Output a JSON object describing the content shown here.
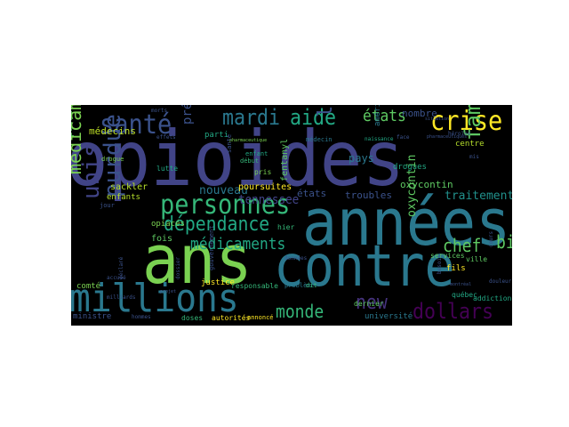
{
  "wordcloud": {
    "background": "#000000",
    "words": [
      {
        "id": "opioides",
        "text": "opioides",
        "color": "#414487"
      },
      {
        "id": "annees",
        "text": "années",
        "color": "#2a788e"
      },
      {
        "id": "ans",
        "text": "ans",
        "color": "#7ad151"
      },
      {
        "id": "contre",
        "text": "contre",
        "color": "#2a788e"
      },
      {
        "id": "millions",
        "text": "millions",
        "color": "#2a788e"
      },
      {
        "id": "personnes",
        "text": "personnes",
        "color": "#35b779"
      },
      {
        "id": "sante",
        "text": "santé",
        "color": "#3b528b"
      },
      {
        "id": "mardi",
        "text": "mardi",
        "color": "#2a788e"
      },
      {
        "id": "aide",
        "text": "aide",
        "color": "#22a884"
      },
      {
        "id": "etats",
        "text": "états",
        "color": "#5ec962"
      },
      {
        "id": "crise",
        "text": "crise",
        "color": "#fde725"
      },
      {
        "id": "dependance",
        "text": "dépendance",
        "color": "#22a884"
      },
      {
        "id": "medicaments",
        "text": "médicaments",
        "color": "#22a884"
      },
      {
        "id": "monde",
        "text": "monde",
        "color": "#35b779"
      },
      {
        "id": "new",
        "text": "new",
        "color": "#46337e"
      },
      {
        "id": "dollars",
        "text": "dollars",
        "color": "#440154"
      },
      {
        "id": "chef",
        "text": "chef",
        "color": "#5ec962"
      },
      {
        "id": "bien",
        "text": "bien",
        "color": "#5ec962"
      },
      {
        "id": "unis",
        "text": "unis",
        "color": "#414487"
      },
      {
        "id": "purdue",
        "text": "purdue",
        "color": "#3b528b"
      },
      {
        "id": "medicament",
        "text": "médicament",
        "color": "#7ad151"
      },
      {
        "id": "famille",
        "text": "famille",
        "color": "#5ec962"
      },
      {
        "id": "lundi",
        "text": "lundi",
        "color": "#3b528b"
      },
      {
        "id": "tennessee",
        "text": "tennessee",
        "color": "#414487"
      },
      {
        "id": "pays",
        "text": "pays",
        "color": "#2a788e"
      },
      {
        "id": "nombre",
        "text": "nombre",
        "color": "#3b528b"
      },
      {
        "id": "medecins",
        "text": "médecins",
        "color": "#bddf26"
      },
      {
        "id": "president",
        "text": "président",
        "color": "#3b528b"
      },
      {
        "id": "oxycontin",
        "text": "oxycontin",
        "color": "#5ec962"
      },
      {
        "id": "fentanyl",
        "text": "fentanyl",
        "color": "#5ec962"
      },
      {
        "id": "troubles",
        "text": "troubles",
        "color": "#3b528b"
      },
      {
        "id": "traitement",
        "text": "traitement",
        "color": "#21918c"
      },
      {
        "id": "nouveau",
        "text": "nouveau",
        "color": "#2a788e"
      },
      {
        "id": "sackler",
        "text": "sackler",
        "color": "#b5de2b"
      },
      {
        "id": "enfants",
        "text": "enfants",
        "color": "#b5de2b"
      },
      {
        "id": "opiaces",
        "text": "opiacés",
        "color": "#7ad151"
      },
      {
        "id": "fois",
        "text": "fois",
        "color": "#5ec962"
      },
      {
        "id": "poursuites",
        "text": "poursuites",
        "color": "#fde725"
      },
      {
        "id": "universite",
        "text": "université",
        "color": "#2a788e"
      },
      {
        "id": "ministre",
        "text": "ministre",
        "color": "#3b528b"
      },
      {
        "id": "etats2",
        "text": "états",
        "color": "#3b528b"
      },
      {
        "id": "patients",
        "text": "patients",
        "color": "#5ec962"
      },
      {
        "id": "centre",
        "text": "centre",
        "color": "#b5de2b"
      },
      {
        "id": "parti",
        "text": "parti",
        "color": "#22a884"
      },
      {
        "id": "drogues",
        "text": "drogues",
        "color": "#22a884"
      },
      {
        "id": "dernier",
        "text": "dernier",
        "color": "#5ec962"
      },
      {
        "id": "addiction",
        "text": "addiction",
        "color": "#22a884"
      },
      {
        "id": "fils",
        "text": "fils",
        "color": "#fde725"
      },
      {
        "id": "comte",
        "text": "comté",
        "color": "#7ad151"
      },
      {
        "id": "justice",
        "text": "justice",
        "color": "#fde725"
      },
      {
        "id": "responsable",
        "text": "responsable",
        "color": "#35b779"
      },
      {
        "id": "services",
        "text": "services",
        "color": "#5ec962"
      },
      {
        "id": "ville",
        "text": "ville",
        "color": "#5ec962"
      },
      {
        "id": "quebec",
        "text": "québec",
        "color": "#22a884"
      },
      {
        "id": "americain",
        "text": "américain",
        "color": "#2a788e"
      },
      {
        "id": "drogue",
        "text": "drogue",
        "color": "#7ad151"
      },
      {
        "id": "lutte",
        "text": "lutte",
        "color": "#22a884"
      },
      {
        "id": "enfant",
        "text": "enfant",
        "color": "#22a884"
      },
      {
        "id": "debut",
        "text": "début",
        "color": "#35b779"
      },
      {
        "id": "pris",
        "text": "pris",
        "color": "#7ad151"
      },
      {
        "id": "hier",
        "text": "hier",
        "color": "#35b779"
      },
      {
        "id": "annonce",
        "text": "annoncé",
        "color": "#fde725"
      },
      {
        "id": "autorites",
        "text": "autorités",
        "color": "#fde725"
      },
      {
        "id": "doses",
        "text": "doses",
        "color": "#35b779"
      },
      {
        "id": "probleme",
        "text": "problème",
        "color": "#2a788e"
      },
      {
        "id": "medecin",
        "text": "médecin",
        "color": "#2a788e"
      },
      {
        "id": "heroine",
        "text": "héroïne",
        "color": "#3b528b"
      },
      {
        "id": "naissance",
        "text": "naissance",
        "color": "#22a884"
      },
      {
        "id": "mort",
        "text": "morts",
        "color": "#3b528b"
      },
      {
        "id": "effets",
        "text": "effets",
        "color": "#3b528b"
      },
      {
        "id": "jour",
        "text": "jour",
        "color": "#3b528b"
      },
      {
        "id": "accuse",
        "text": "accusé",
        "color": "#3b528b"
      },
      {
        "id": "pharmaceutique",
        "text": "pharmaceutique",
        "color": "#7ad151"
      },
      {
        "id": "donnees",
        "text": "données",
        "color": "#3b528b"
      },
      {
        "id": "gouvernement",
        "text": "gouvernement",
        "color": "#3b528b"
      },
      {
        "id": "dossier",
        "text": "dossier",
        "color": "#3b528b"
      },
      {
        "id": "dit",
        "text": "dit",
        "color": "#35b779"
      },
      {
        "id": "face",
        "text": "face",
        "color": "#3b528b"
      },
      {
        "id": "mis",
        "text": "mis",
        "color": "#3b528b"
      },
      {
        "id": "sante2",
        "text": "santé",
        "color": "#3b528b"
      },
      {
        "id": "projet",
        "text": "projet",
        "color": "#3b528b"
      },
      {
        "id": "besoin",
        "text": "besoin",
        "color": "#3b528b"
      },
      {
        "id": "douleur",
        "text": "douleur",
        "color": "#3b528b"
      },
      {
        "id": "pharmaceutiques",
        "text": "pharmaceutiques",
        "color": "#3b528b"
      },
      {
        "id": "hommes",
        "text": "hommes",
        "color": "#3b528b"
      },
      {
        "id": "cours",
        "text": "cours",
        "color": "#3b528b"
      },
      {
        "id": "situation",
        "text": "situation",
        "color": "#3b528b"
      },
      {
        "id": "milliards",
        "text": "milliards",
        "color": "#3b528b"
      },
      {
        "id": "declare",
        "text": "déclaré",
        "color": "#3b528b"
      },
      {
        "id": "montreal",
        "text": "montréal",
        "color": "#3b528b"
      }
    ]
  }
}
